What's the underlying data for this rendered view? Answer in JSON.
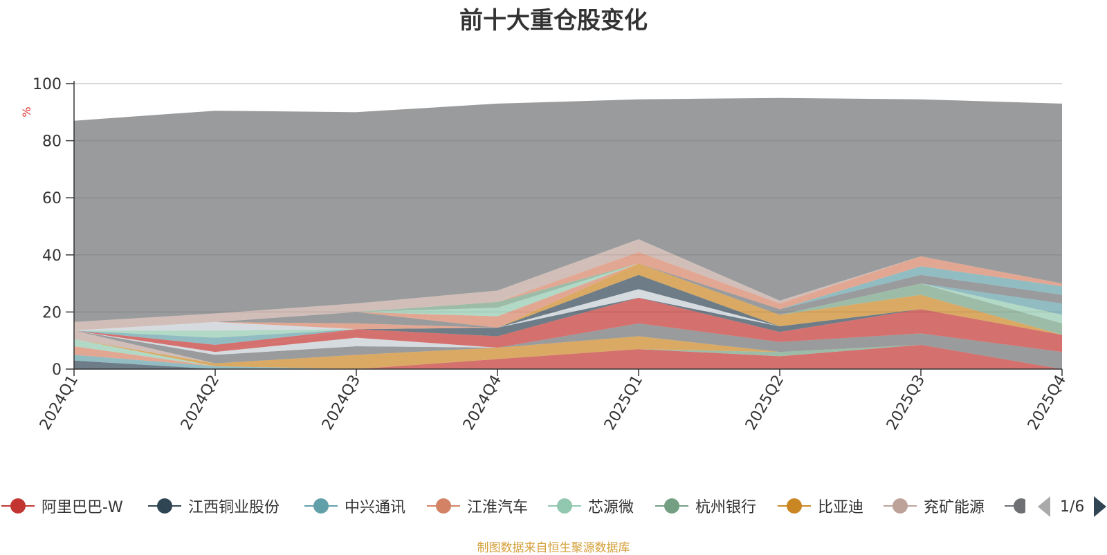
{
  "chart_data": {
    "type": "area",
    "title": "前十大重仓股变化",
    "ylabel": "%",
    "ylim": [
      0,
      100
    ],
    "yticks": [
      "0",
      "20",
      "40",
      "60",
      "80",
      "100"
    ],
    "categories": [
      "2024Q1",
      "2024Q2",
      "2024Q3",
      "2024Q4",
      "2025Q1",
      "2025Q2",
      "2025Q3",
      "2025Q4"
    ],
    "grid": true,
    "stacked": true,
    "legend_position": "bottom",
    "series": [
      {
        "name": "阿里巴巴-W",
        "color": "#c23531",
        "values": [
          0,
          0,
          0,
          3.5,
          7,
          4.5,
          8.5,
          0
        ]
      },
      {
        "name": "江西铜业股份",
        "color": "#2f4554",
        "values": [
          3,
          0,
          0,
          0,
          0,
          0,
          0,
          0
        ]
      },
      {
        "name": "中兴通讯",
        "color": "#61a0a8",
        "values": [
          2,
          1,
          0,
          0,
          0,
          0,
          0,
          0
        ]
      },
      {
        "name": "江淮汽车",
        "color": "#d48265",
        "values": [
          3,
          0,
          0,
          0,
          0,
          0,
          0,
          0
        ]
      },
      {
        "name": "芯源微",
        "color": "#91c7ae",
        "values": [
          2.5,
          0,
          0,
          0,
          0,
          0,
          0,
          0
        ]
      },
      {
        "name": "杭州银行",
        "color": "#749f83",
        "values": [
          0,
          0,
          0,
          0,
          0,
          1.5,
          0,
          0
        ]
      },
      {
        "name": "比亚迪",
        "color": "#ca8622",
        "values": [
          0,
          1,
          5,
          4,
          4.5,
          0,
          0,
          0
        ]
      },
      {
        "name": "兖矿能源",
        "color": "#bda29a",
        "values": [
          3,
          0,
          0,
          0,
          0,
          0,
          0,
          0
        ]
      },
      {
        "name": "",
        "color": "#6e7074",
        "values": [
          0,
          3,
          3,
          0,
          4.5,
          3.5,
          4,
          6
        ]
      },
      {
        "name": "",
        "color": "#c4ccd3",
        "values": [
          0,
          1,
          3,
          0,
          0,
          0,
          0,
          0
        ]
      },
      {
        "name": "",
        "color": "#c23531",
        "values": [
          0,
          0,
          3,
          4,
          9,
          3.5,
          8.5,
          6
        ]
      },
      {
        "name": "",
        "color": "#2f4554",
        "values": [
          0,
          0,
          0,
          3,
          0,
          2,
          0,
          0
        ]
      },
      {
        "name": "",
        "color": "#c4ccd3",
        "values": [
          0,
          0,
          0,
          0,
          3,
          0,
          0,
          0
        ]
      },
      {
        "name": "",
        "color": "#2f4554",
        "values": [
          0,
          0,
          0,
          0,
          5,
          0,
          0,
          0
        ]
      },
      {
        "name": "",
        "color": "#ca8622",
        "values": [
          0,
          0,
          0,
          0,
          4,
          4,
          5,
          0
        ]
      },
      {
        "name": "",
        "color": "#749f83",
        "values": [
          0,
          0,
          0,
          0,
          0,
          0,
          4,
          4
        ]
      },
      {
        "name": "",
        "color": "#91c7ae",
        "values": [
          0,
          0,
          0,
          0,
          0,
          0,
          0,
          3
        ]
      },
      {
        "name": "",
        "color": "#61a0a8",
        "values": [
          0,
          0,
          0,
          0,
          0,
          0,
          0,
          4
        ]
      },
      {
        "name": "",
        "color": "#c23531",
        "values": [
          0,
          2.5,
          0,
          0,
          0,
          0,
          0,
          0
        ]
      },
      {
        "name": "",
        "color": "#61a0a8",
        "values": [
          0,
          2.5,
          0,
          0,
          0,
          0,
          0,
          0
        ]
      },
      {
        "name": "",
        "color": "#91c7ae",
        "values": [
          0,
          2.5,
          0,
          0,
          0,
          0,
          0,
          0
        ]
      },
      {
        "name": "",
        "color": "#c4ccd3",
        "values": [
          0,
          3,
          0,
          0,
          0,
          0,
          0,
          0
        ]
      },
      {
        "name": "",
        "color": "#d48265",
        "values": [
          0,
          0,
          2,
          0,
          0,
          0,
          0,
          0
        ]
      },
      {
        "name": "",
        "color": "#6e7074",
        "values": [
          0,
          0,
          4,
          0,
          0,
          0,
          0,
          0
        ]
      },
      {
        "name": "",
        "color": "#d48265",
        "values": [
          0,
          0,
          0,
          4,
          0,
          0,
          0,
          0
        ]
      },
      {
        "name": "",
        "color": "#91c7ae",
        "values": [
          0,
          0,
          0,
          3,
          0,
          0,
          0,
          0
        ]
      },
      {
        "name": "",
        "color": "#749f83",
        "values": [
          0,
          0,
          0,
          2,
          0,
          0,
          0,
          0
        ]
      },
      {
        "name": "",
        "color": "#6e7074",
        "values": [
          0,
          0,
          0,
          0,
          0,
          2,
          3,
          3
        ]
      },
      {
        "name": "",
        "color": "#61a0a8",
        "values": [
          0,
          0,
          0,
          0,
          0,
          0,
          3,
          3
        ]
      },
      {
        "name": "",
        "color": "#d48265",
        "values": [
          0,
          0,
          0,
          0,
          4,
          2,
          3.5,
          1
        ]
      },
      {
        "name": "",
        "color": "#bda29a",
        "values": [
          0,
          0,
          0,
          0,
          4.5,
          0,
          0,
          0
        ]
      },
      {
        "name": "",
        "color": "#c4ccd3",
        "values": [
          0,
          0,
          0,
          0,
          0,
          0,
          0,
          0
        ]
      },
      {
        "name": "",
        "color": "#91c7ae",
        "values": [
          0,
          0,
          0,
          0,
          0,
          0,
          0,
          0
        ]
      },
      {
        "name": "",
        "color": "#bda29a",
        "values": [
          3,
          3,
          3,
          4,
          0,
          1,
          0,
          0
        ]
      },
      {
        "name": "",
        "color": "#6e7074",
        "values": [
          70.5,
          71,
          67,
          65.5,
          49,
          71,
          55,
          63
        ]
      }
    ]
  },
  "legend": {
    "items": [
      {
        "label": "阿里巴巴-W",
        "color": "#c23531"
      },
      {
        "label": "江西铜业股份",
        "color": "#2f4554"
      },
      {
        "label": "中兴通讯",
        "color": "#61a0a8"
      },
      {
        "label": "江淮汽车",
        "color": "#d48265"
      },
      {
        "label": "芯源微",
        "color": "#91c7ae"
      },
      {
        "label": "杭州银行",
        "color": "#749f83"
      },
      {
        "label": "比亚迪",
        "color": "#ca8622"
      },
      {
        "label": "兖矿能源",
        "color": "#bda29a"
      },
      {
        "label": "",
        "color": "#6e7074"
      }
    ],
    "page_text": "1/6"
  },
  "source_note": "制图数据来自恒生聚源数据库"
}
